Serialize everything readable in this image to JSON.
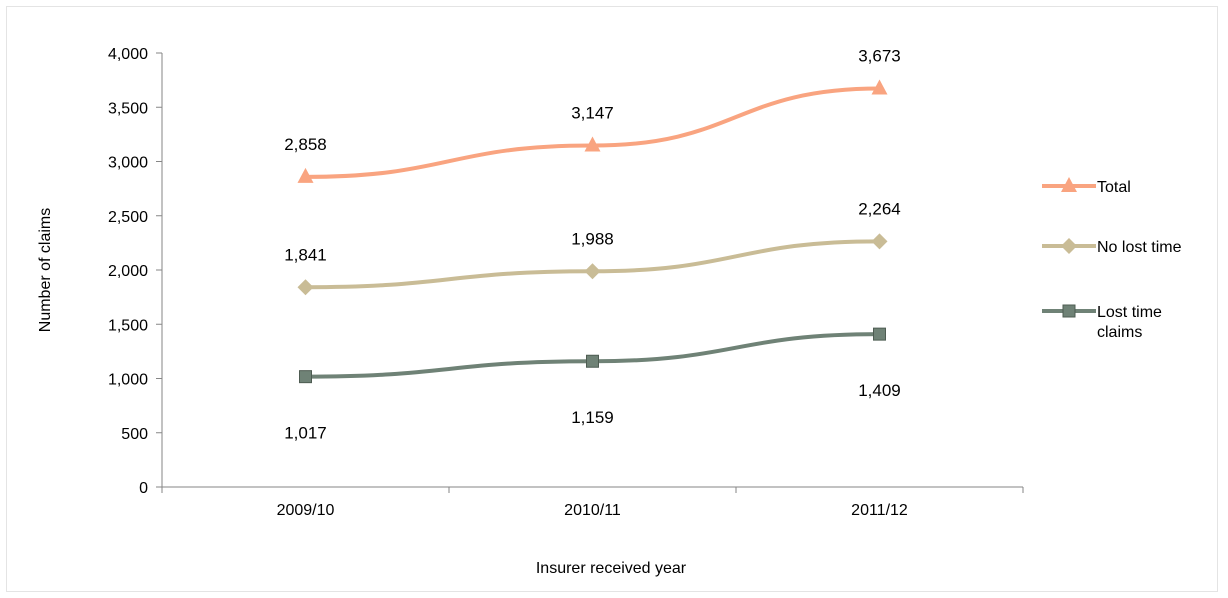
{
  "chart_data": {
    "type": "line",
    "title": "",
    "xlabel": "Insurer received year",
    "ylabel": "Number of claims",
    "ylim": [
      0,
      4000
    ],
    "yticks": [
      0,
      500,
      1000,
      1500,
      2000,
      2500,
      3000,
      3500,
      4000
    ],
    "ytick_labels": [
      "0",
      "500",
      "1,000",
      "1,500",
      "2,000",
      "2,500",
      "3,000",
      "3,500",
      "4,000"
    ],
    "categories": [
      "2009/10",
      "2010/11",
      "2011/12"
    ],
    "grid": false,
    "legend_position": "right",
    "series": [
      {
        "name": "Total",
        "legend_lines": [
          "Total"
        ],
        "values": [
          2858,
          3147,
          3673
        ],
        "labels": [
          "2,858",
          "3,147",
          "3,673"
        ],
        "label_position": "above",
        "color": "#f9a480",
        "marker": "triangle"
      },
      {
        "name": "No lost time",
        "legend_lines": [
          "No lost time"
        ],
        "values": [
          1841,
          1988,
          2264
        ],
        "labels": [
          "1,841",
          "1,988",
          "2,264"
        ],
        "label_position": "above",
        "color": "#c9bc96",
        "marker": "diamond"
      },
      {
        "name": "Lost time claims",
        "legend_lines": [
          "Lost time",
          "claims"
        ],
        "values": [
          1017,
          1159,
          1409
        ],
        "labels": [
          "1,017",
          "1,159",
          "1,409"
        ],
        "label_position": "below",
        "color": "#6f8276",
        "marker": "square"
      }
    ]
  }
}
